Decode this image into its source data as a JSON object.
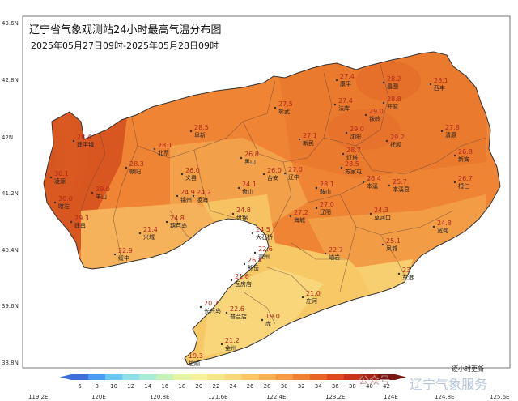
{
  "map": {
    "title": "辽宁省气象观测站24小时最高气温分布图",
    "subtitle": "2025年05月27日09时-2025年05月28日09时",
    "lat_labels": [
      "43.6N",
      "42.8N",
      "42N",
      "41.2N",
      "40.4N",
      "39.6N",
      "38.8N"
    ],
    "lon_labels": [
      "119.2E",
      "120E",
      "120.8E",
      "121.6E",
      "122.4E",
      "123.2E",
      "124E",
      "124.8E",
      "125.6E"
    ],
    "footer_note": "逐小时更新",
    "watermark_main": "辽宁气象服务",
    "watermark_sub": "公众号",
    "colorbar": {
      "ticks": [
        "6",
        "8",
        "10",
        "12",
        "14",
        "16",
        "18",
        "20",
        "22",
        "24",
        "26",
        "28",
        "30",
        "32",
        "34",
        "36",
        "38",
        "40",
        "42"
      ],
      "colors": [
        "#3b6fd9",
        "#4a9df0",
        "#6cc7f2",
        "#8ee0e8",
        "#a9ecd7",
        "#c6f2b8",
        "#e4f6a2",
        "#f5f29a",
        "#f8e68a",
        "#fad87a",
        "#fbc766",
        "#f9b052",
        "#f59a44",
        "#ef8135",
        "#e86628",
        "#dc4b1f",
        "#c73418",
        "#a82414",
        "#7c1410"
      ]
    },
    "stations": [
      {
        "name": "康平",
        "value": "27.4"
      },
      {
        "name": "昌图",
        "value": "28.2"
      },
      {
        "name": "西丰",
        "value": "28.1"
      },
      {
        "name": "法库",
        "value": "27.4"
      },
      {
        "name": "开原",
        "value": "28.8"
      },
      {
        "name": "彰武",
        "value": "27.5"
      },
      {
        "name": "铁岭",
        "value": "29.0"
      },
      {
        "name": "建平镇",
        "value": "28.4"
      },
      {
        "name": "阜新",
        "value": "28.5"
      },
      {
        "name": "新民",
        "value": "27.1"
      },
      {
        "name": "沈阳",
        "value": "29.0"
      },
      {
        "name": "抚顺",
        "value": "29.2"
      },
      {
        "name": "清原",
        "value": "27.8"
      },
      {
        "name": "北票",
        "value": "28.1"
      },
      {
        "name": "黑山",
        "value": "26.8"
      },
      {
        "name": "辽中",
        "value": "27.0"
      },
      {
        "name": "灯塔",
        "value": "28.7"
      },
      {
        "name": "新宾",
        "value": "26.8"
      },
      {
        "name": "朝阳",
        "value": "28.3"
      },
      {
        "name": "义县",
        "value": "26.0"
      },
      {
        "name": "台安",
        "value": "26.0"
      },
      {
        "name": "苏家屯",
        "value": "28.5"
      },
      {
        "name": "凌源",
        "value": "30.1"
      },
      {
        "name": "喀左",
        "value": "30.0"
      },
      {
        "name": "羊山",
        "value": "29.0"
      },
      {
        "name": "锦州",
        "value": "24.9"
      },
      {
        "name": "凌海",
        "value": "24.2"
      },
      {
        "name": "盘山",
        "value": "24.1"
      },
      {
        "name": "鞍山",
        "value": "28.1"
      },
      {
        "name": "本溪",
        "value": "26.4"
      },
      {
        "name": "本溪县",
        "value": "25.7"
      },
      {
        "name": "桓仁",
        "value": "26.7"
      },
      {
        "name": "建昌",
        "value": "29.3"
      },
      {
        "name": "葫芦岛",
        "value": "24.8"
      },
      {
        "name": "盘锦",
        "value": "24.8"
      },
      {
        "name": "海城",
        "value": "27.2"
      },
      {
        "name": "辽阳",
        "value": "27.0"
      },
      {
        "name": "草河口",
        "value": "24.3"
      },
      {
        "name": "兴城",
        "value": "21.4"
      },
      {
        "name": "大石桥",
        "value": "24.5"
      },
      {
        "name": "宽甸",
        "value": "24.8"
      },
      {
        "name": "绥中",
        "value": "22.9"
      },
      {
        "name": "盖州",
        "value": "22.6"
      },
      {
        "name": "岫岩",
        "value": "22.7"
      },
      {
        "name": "凤城",
        "value": "25.1"
      },
      {
        "name": "熊岳",
        "value": "26.4"
      },
      {
        "name": "东港",
        "value": "23"
      },
      {
        "name": "瓦房店",
        "value": "21.6"
      },
      {
        "name": "庄河",
        "value": "21.0"
      },
      {
        "name": "长兴岛",
        "value": "20.7"
      },
      {
        "name": "普兰店",
        "value": "22.6"
      },
      {
        "name": "庞",
        "value": "19.0"
      },
      {
        "name": "金州",
        "value": "21.2"
      },
      {
        "name": "旅顺",
        "value": "19.3"
      }
    ]
  }
}
